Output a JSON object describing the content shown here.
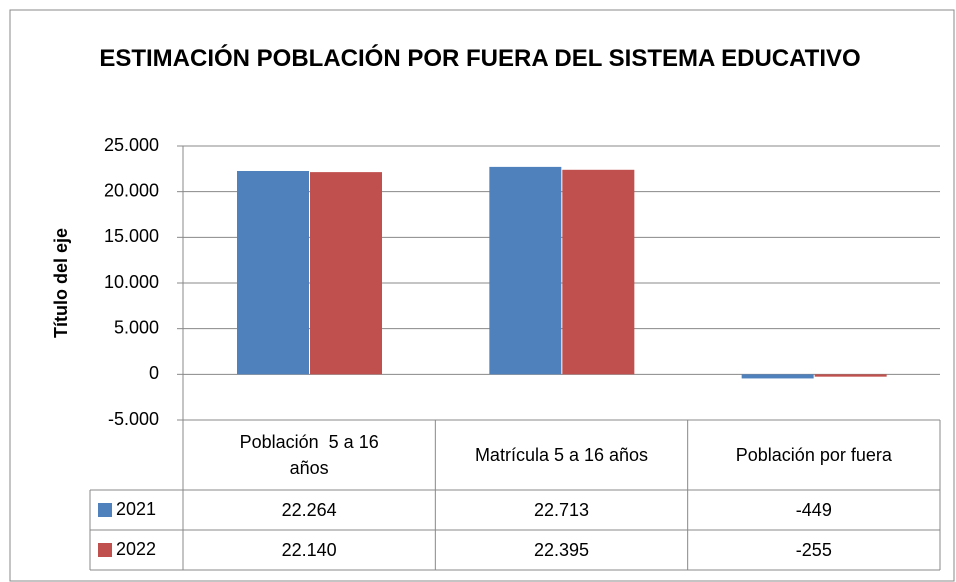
{
  "chart_data": {
    "type": "bar",
    "title": "ESTIMACIÓN POBLACIÓN POR FUERA DEL SISTEMA EDUCATIVO",
    "y_axis_label": "Título del eje",
    "categories": [
      "Población  5 a 16 años",
      "Matrícula 5 a 16 años",
      "Población por fuera"
    ],
    "series": [
      {
        "name": "2021",
        "color": "#4f81bd",
        "values": [
          22264,
          22713,
          -449
        ],
        "value_labels": [
          "22.264",
          "22.713",
          "-449"
        ]
      },
      {
        "name": "2022",
        "color": "#c0504d",
        "values": [
          22140,
          22395,
          -255
        ],
        "value_labels": [
          "22.140",
          "22.395",
          "-255"
        ]
      }
    ],
    "ylim": [
      -5000,
      25000
    ],
    "yticks": [
      {
        "value": -5000,
        "label": "-5.000"
      },
      0,
      {
        "value": 5000,
        "label": "5.000"
      },
      {
        "value": 10000,
        "label": "10.000"
      },
      {
        "value": 15000,
        "label": "15.000"
      },
      {
        "value": 20000,
        "label": "20.000"
      },
      {
        "value": 25000,
        "label": "25.000"
      }
    ],
    "grid": true,
    "data_table": true
  }
}
